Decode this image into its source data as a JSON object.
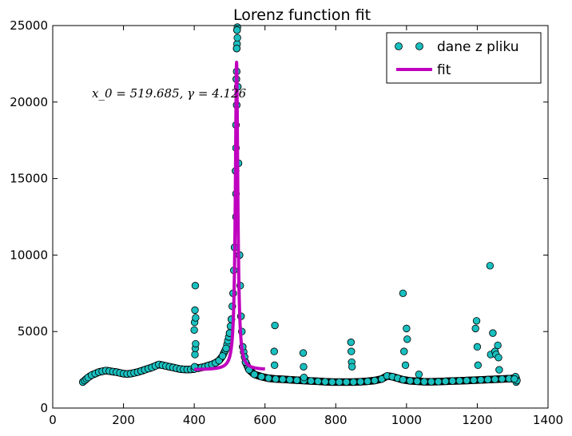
{
  "chart_data": {
    "type": "scatter",
    "title": "Lorenz function fit",
    "xlabel": "",
    "ylabel": "",
    "xlim": [
      0,
      1400
    ],
    "ylim": [
      0,
      25000
    ],
    "xticks": [
      0,
      200,
      400,
      600,
      800,
      1000,
      1200,
      1400
    ],
    "yticks": [
      0,
      5000,
      10000,
      15000,
      20000,
      25000
    ],
    "grid": false,
    "legend": {
      "position": "top-right",
      "entries": [
        "dane z pliku",
        "fit"
      ]
    },
    "annotation": "x_0 = 519.685, γ = 4.126",
    "fit_params": {
      "x0": 519.685,
      "gamma": 4.126
    },
    "series": [
      {
        "name": "dane z pliku",
        "kind": "markers",
        "color": "#1ABFBF",
        "points": [
          [
            85,
            1700
          ],
          [
            90,
            1800
          ],
          [
            95,
            1900
          ],
          [
            100,
            2000
          ],
          [
            110,
            2150
          ],
          [
            120,
            2250
          ],
          [
            130,
            2350
          ],
          [
            140,
            2400
          ],
          [
            150,
            2450
          ],
          [
            160,
            2420
          ],
          [
            170,
            2380
          ],
          [
            180,
            2350
          ],
          [
            190,
            2300
          ],
          [
            200,
            2250
          ],
          [
            210,
            2230
          ],
          [
            220,
            2250
          ],
          [
            230,
            2300
          ],
          [
            240,
            2350
          ],
          [
            250,
            2420
          ],
          [
            260,
            2500
          ],
          [
            270,
            2580
          ],
          [
            280,
            2650
          ],
          [
            290,
            2750
          ],
          [
            300,
            2850
          ],
          [
            310,
            2800
          ],
          [
            320,
            2750
          ],
          [
            330,
            2700
          ],
          [
            340,
            2650
          ],
          [
            350,
            2600
          ],
          [
            360,
            2550
          ],
          [
            370,
            2530
          ],
          [
            380,
            2520
          ],
          [
            390,
            2530
          ],
          [
            400,
            2550
          ],
          [
            410,
            2600
          ],
          [
            420,
            2650
          ],
          [
            430,
            2700
          ],
          [
            440,
            2780
          ],
          [
            450,
            2850
          ],
          [
            460,
            2950
          ],
          [
            470,
            3100
          ],
          [
            480,
            3400
          ],
          [
            490,
            3900
          ],
          [
            500,
            4900
          ],
          [
            505,
            5800
          ],
          [
            510,
            7500
          ],
          [
            514,
            10500
          ],
          [
            517,
            15500
          ],
          [
            519,
            21500
          ],
          [
            520,
            23500
          ],
          [
            521,
            24700
          ],
          [
            523,
            21000
          ],
          [
            525,
            16000
          ],
          [
            528,
            10000
          ],
          [
            532,
            6000
          ],
          [
            537,
            4000
          ],
          [
            545,
            3000
          ],
          [
            555,
            2500
          ],
          [
            570,
            2200
          ],
          [
            590,
            2050
          ],
          [
            610,
            1950
          ],
          [
            630,
            1900
          ],
          [
            650,
            1880
          ],
          [
            670,
            1850
          ],
          [
            690,
            1820
          ],
          [
            710,
            1800
          ],
          [
            730,
            1770
          ],
          [
            750,
            1750
          ],
          [
            770,
            1720
          ],
          [
            790,
            1700
          ],
          [
            810,
            1700
          ],
          [
            830,
            1700
          ],
          [
            850,
            1700
          ],
          [
            870,
            1720
          ],
          [
            890,
            1750
          ],
          [
            910,
            1800
          ],
          [
            930,
            1900
          ],
          [
            945,
            2100
          ],
          [
            960,
            2050
          ],
          [
            975,
            1950
          ],
          [
            990,
            1850
          ],
          [
            1010,
            1780
          ],
          [
            1030,
            1750
          ],
          [
            1050,
            1720
          ],
          [
            1070,
            1720
          ],
          [
            1090,
            1730
          ],
          [
            1110,
            1750
          ],
          [
            1130,
            1770
          ],
          [
            1150,
            1780
          ],
          [
            1170,
            1800
          ],
          [
            1190,
            1820
          ],
          [
            1210,
            1840
          ],
          [
            1230,
            1860
          ],
          [
            1250,
            1880
          ],
          [
            1270,
            1900
          ],
          [
            1290,
            1920
          ],
          [
            1310,
            1950
          ],
          [
            401,
            2700
          ],
          [
            402,
            3500
          ],
          [
            403,
            3900
          ],
          [
            404,
            4200
          ],
          [
            400,
            5100
          ],
          [
            401,
            5600
          ],
          [
            402,
            6400
          ],
          [
            403,
            8000
          ],
          [
            404,
            5900
          ],
          [
            628,
            5400
          ],
          [
            626,
            3700
          ],
          [
            627,
            2800
          ],
          [
            708,
            3600
          ],
          [
            709,
            2700
          ],
          [
            710,
            2000
          ],
          [
            843,
            4300
          ],
          [
            844,
            3700
          ],
          [
            845,
            3000
          ],
          [
            846,
            2700
          ],
          [
            990,
            7500
          ],
          [
            993,
            3700
          ],
          [
            997,
            2800
          ],
          [
            1000,
            5200
          ],
          [
            1002,
            4500
          ],
          [
            1035,
            2200
          ],
          [
            1195,
            5200
          ],
          [
            1198,
            5700
          ],
          [
            1200,
            4000
          ],
          [
            1202,
            2800
          ],
          [
            1236,
            9300
          ],
          [
            1238,
            3500
          ],
          [
            1244,
            4900
          ],
          [
            1250,
            3700
          ],
          [
            1253,
            3500
          ],
          [
            1258,
            4100
          ],
          [
            1260,
            3300
          ],
          [
            1262,
            2500
          ],
          [
            1310,
            1700
          ],
          [
            1312,
            1800
          ],
          [
            1308,
            2050
          ],
          [
            1305,
            1900
          ]
        ]
      },
      {
        "name": "fit",
        "kind": "line",
        "color": "#BF00BF",
        "x_range": [
          400,
          600
        ],
        "baseline": 2500,
        "peak": 22600
      }
    ]
  }
}
